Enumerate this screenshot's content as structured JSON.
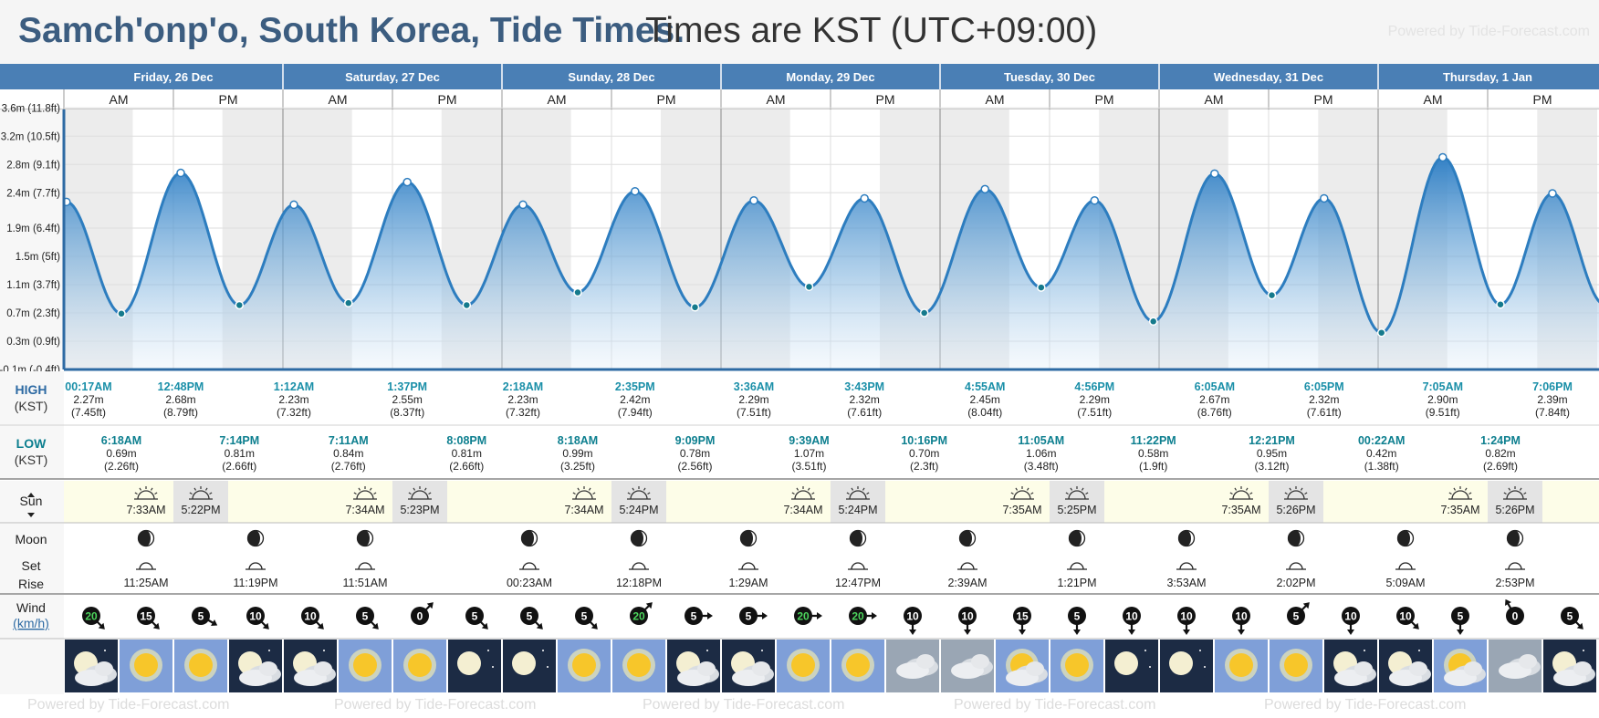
{
  "title": {
    "main": "Samch'onp'o, South Korea, Tide Times.",
    "sub": "Times are KST (UTC+09:00)",
    "powered": "Powered by Tide-Forecast.com"
  },
  "colors": {
    "header": "#4a7fb5",
    "accent_text": "#1a8fa8",
    "low_text": "#0d7f8f",
    "night_shade": "#ececec",
    "sun_row": "#fdfde8",
    "wave": "#2d7dbf"
  },
  "days": [
    {
      "label": "Friday, 26 Dec"
    },
    {
      "label": "Saturday, 27 Dec"
    },
    {
      "label": "Sunday, 28 Dec"
    },
    {
      "label": "Monday, 29 Dec"
    },
    {
      "label": "Tuesday, 30 Dec"
    },
    {
      "label": "Wednesday, 31 Dec"
    },
    {
      "label": "Thursday, 1 Jan"
    }
  ],
  "ampm": {
    "am": "AM",
    "pm": "PM"
  },
  "row_labels": {
    "high": "HIGH",
    "high_tz": "(KST)",
    "low": "LOW",
    "low_tz": "(KST)",
    "sun": "Sun",
    "moon": "Moon",
    "moon_set": "Set",
    "moon_rise": "Rise",
    "wind": "Wind",
    "wind_unit": "km/h"
  },
  "chart_data": {
    "type": "area",
    "title": "",
    "ylabel": "",
    "x_unit": "hours from Friday 26 Dec 00:00 KST",
    "y_ticks": [
      {
        "m": 3.6,
        "label": "3.6m (11.8ft)"
      },
      {
        "m": 3.2,
        "label": "3.2m (10.5ft)"
      },
      {
        "m": 2.8,
        "label": "2.8m (9.1ft)"
      },
      {
        "m": 2.4,
        "label": "2.4m (7.7ft)"
      },
      {
        "m": 1.9,
        "label": "1.9m (6.4ft)"
      },
      {
        "m": 1.5,
        "label": "1.5m (5ft)"
      },
      {
        "m": 1.1,
        "label": "1.1m (3.7ft)"
      },
      {
        "m": 0.7,
        "label": "0.7m (2.3ft)"
      },
      {
        "m": 0.3,
        "label": "0.3m (0.9ft)"
      },
      {
        "m": -0.1,
        "label": "-0.1m (-0.4ft)"
      }
    ],
    "ylim": [
      -0.1,
      3.7
    ],
    "tides": [
      {
        "type": "high",
        "day": 0,
        "time": "00:17AM",
        "m": "2.27m",
        "ft": "(7.45ft)",
        "h": 0.28,
        "v": 2.27
      },
      {
        "type": "low",
        "day": 0,
        "time": "6:18AM",
        "m": "0.69m",
        "ft": "(2.26ft)",
        "h": 6.3,
        "v": 0.69
      },
      {
        "type": "high",
        "day": 0,
        "time": "12:48PM",
        "m": "2.68m",
        "ft": "(8.79ft)",
        "h": 12.8,
        "v": 2.68
      },
      {
        "type": "low",
        "day": 0,
        "time": "7:14PM",
        "m": "0.81m",
        "ft": "(2.66ft)",
        "h": 19.23,
        "v": 0.81
      },
      {
        "type": "high",
        "day": 1,
        "time": "1:12AM",
        "m": "2.23m",
        "ft": "(7.32ft)",
        "h": 25.2,
        "v": 2.23
      },
      {
        "type": "low",
        "day": 1,
        "time": "7:11AM",
        "m": "0.84m",
        "ft": "(2.76ft)",
        "h": 31.18,
        "v": 0.84
      },
      {
        "type": "high",
        "day": 1,
        "time": "1:37PM",
        "m": "2.55m",
        "ft": "(8.37ft)",
        "h": 37.62,
        "v": 2.55
      },
      {
        "type": "low",
        "day": 1,
        "time": "8:08PM",
        "m": "0.81m",
        "ft": "(2.66ft)",
        "h": 44.13,
        "v": 0.81
      },
      {
        "type": "high",
        "day": 2,
        "time": "2:18AM",
        "m": "2.23m",
        "ft": "(7.32ft)",
        "h": 50.3,
        "v": 2.23
      },
      {
        "type": "low",
        "day": 2,
        "time": "8:18AM",
        "m": "0.99m",
        "ft": "(3.25ft)",
        "h": 56.3,
        "v": 0.99
      },
      {
        "type": "high",
        "day": 2,
        "time": "2:35PM",
        "m": "2.42m",
        "ft": "(7.94ft)",
        "h": 62.58,
        "v": 2.42
      },
      {
        "type": "low",
        "day": 2,
        "time": "9:09PM",
        "m": "0.78m",
        "ft": "(2.56ft)",
        "h": 69.15,
        "v": 0.78
      },
      {
        "type": "high",
        "day": 3,
        "time": "3:36AM",
        "m": "2.29m",
        "ft": "(7.51ft)",
        "h": 75.6,
        "v": 2.29
      },
      {
        "type": "low",
        "day": 3,
        "time": "9:39AM",
        "m": "1.07m",
        "ft": "(3.51ft)",
        "h": 81.65,
        "v": 1.07
      },
      {
        "type": "high",
        "day": 3,
        "time": "3:43PM",
        "m": "2.32m",
        "ft": "(7.61ft)",
        "h": 87.72,
        "v": 2.32
      },
      {
        "type": "low",
        "day": 3,
        "time": "10:16PM",
        "m": "0.70m",
        "ft": "(2.3ft)",
        "h": 94.27,
        "v": 0.7
      },
      {
        "type": "high",
        "day": 4,
        "time": "4:55AM",
        "m": "2.45m",
        "ft": "(8.04ft)",
        "h": 100.92,
        "v": 2.45
      },
      {
        "type": "low",
        "day": 4,
        "time": "11:05AM",
        "m": "1.06m",
        "ft": "(3.48ft)",
        "h": 107.08,
        "v": 1.06
      },
      {
        "type": "high",
        "day": 4,
        "time": "4:56PM",
        "m": "2.29m",
        "ft": "(7.51ft)",
        "h": 112.93,
        "v": 2.29
      },
      {
        "type": "low",
        "day": 4,
        "time": "11:22PM",
        "m": "0.58m",
        "ft": "(1.9ft)",
        "h": 119.37,
        "v": 0.58
      },
      {
        "type": "high",
        "day": 5,
        "time": "6:05AM",
        "m": "2.67m",
        "ft": "(8.76ft)",
        "h": 126.08,
        "v": 2.67
      },
      {
        "type": "low",
        "day": 5,
        "time": "12:21PM",
        "m": "0.95m",
        "ft": "(3.12ft)",
        "h": 132.35,
        "v": 0.95
      },
      {
        "type": "high",
        "day": 5,
        "time": "6:05PM",
        "m": "2.32m",
        "ft": "(7.61ft)",
        "h": 138.08,
        "v": 2.32
      },
      {
        "type": "low",
        "day": 6,
        "time": "00:22AM",
        "m": "0.42m",
        "ft": "(1.38ft)",
        "h": 144.37,
        "v": 0.42
      },
      {
        "type": "high",
        "day": 6,
        "time": "7:05AM",
        "m": "2.90m",
        "ft": "(9.51ft)",
        "h": 151.08,
        "v": 2.9
      },
      {
        "type": "low",
        "day": 6,
        "time": "1:24PM",
        "m": "0.82m",
        "ft": "(2.69ft)",
        "h": 157.4,
        "v": 0.82
      },
      {
        "type": "high",
        "day": 6,
        "time": "7:06PM",
        "m": "2.39m",
        "ft": "(7.84ft)",
        "h": 163.1,
        "v": 2.39
      }
    ]
  },
  "sun": [
    {
      "rise": "7:33AM",
      "set": "5:22PM",
      "rise_h": 7.55,
      "set_h": 17.37
    },
    {
      "rise": "7:34AM",
      "set": "5:23PM",
      "rise_h": 7.57,
      "set_h": 17.38
    },
    {
      "rise": "7:34AM",
      "set": "5:24PM",
      "rise_h": 7.57,
      "set_h": 17.4
    },
    {
      "rise": "7:34AM",
      "set": "5:24PM",
      "rise_h": 7.57,
      "set_h": 17.4
    },
    {
      "rise": "7:35AM",
      "set": "5:25PM",
      "rise_h": 7.58,
      "set_h": 17.42
    },
    {
      "rise": "7:35AM",
      "set": "5:26PM",
      "rise_h": 7.58,
      "set_h": 17.43
    },
    {
      "rise": "7:35AM",
      "set": "5:26PM",
      "rise_h": 7.58,
      "set_h": 17.43
    }
  ],
  "moon": [
    {
      "slot": 1,
      "time": "11:25AM",
      "kind": "rise"
    },
    {
      "slot": 3,
      "time": "11:19PM",
      "kind": "set"
    },
    {
      "slot": 5,
      "time": "11:51AM",
      "kind": "rise"
    },
    {
      "slot": 8,
      "time": "00:23AM",
      "kind": "set"
    },
    {
      "slot": 10,
      "time": "12:18PM",
      "kind": "rise"
    },
    {
      "slot": 12,
      "time": "1:29AM",
      "kind": "set"
    },
    {
      "slot": 14,
      "time": "12:47PM",
      "kind": "rise"
    },
    {
      "slot": 16,
      "time": "2:39AM",
      "kind": "set"
    },
    {
      "slot": 18,
      "time": "1:21PM",
      "kind": "rise"
    },
    {
      "slot": 20,
      "time": "3:53AM",
      "kind": "set"
    },
    {
      "slot": 22,
      "time": "2:02PM",
      "kind": "rise"
    },
    {
      "slot": 24,
      "time": "5:09AM",
      "kind": "set"
    },
    {
      "slot": 26,
      "time": "2:53PM",
      "kind": "rise"
    }
  ],
  "wind": [
    {
      "v": "20",
      "rot": 135,
      "green": true
    },
    {
      "v": "15",
      "rot": 135
    },
    {
      "v": "5",
      "rot": 120
    },
    {
      "v": "10",
      "rot": 135
    },
    {
      "v": "10",
      "rot": 135
    },
    {
      "v": "5",
      "rot": 135
    },
    {
      "v": "0",
      "rot": 45
    },
    {
      "v": "5",
      "rot": 135
    },
    {
      "v": "5",
      "rot": 135
    },
    {
      "v": "5",
      "rot": 135
    },
    {
      "v": "20",
      "rot": 45,
      "green": true
    },
    {
      "v": "5",
      "rot": 90
    },
    {
      "v": "5",
      "rot": 90
    },
    {
      "v": "20",
      "rot": 90,
      "green": true
    },
    {
      "v": "20",
      "rot": 90,
      "green": true
    },
    {
      "v": "10",
      "rot": 180
    },
    {
      "v": "10",
      "rot": 180
    },
    {
      "v": "15",
      "rot": 180
    },
    {
      "v": "5",
      "rot": 180
    },
    {
      "v": "10",
      "rot": 180
    },
    {
      "v": "10",
      "rot": 180
    },
    {
      "v": "10",
      "rot": 180
    },
    {
      "v": "5",
      "rot": 45
    },
    {
      "v": "10",
      "rot": 180
    },
    {
      "v": "10",
      "rot": 135
    },
    {
      "v": "5",
      "rot": 180
    },
    {
      "v": "0",
      "rot": -30
    },
    {
      "v": "5",
      "rot": 135
    }
  ],
  "weather": [
    "moon-cloud-icon",
    "sun-icon",
    "sun-icon",
    "moon-cloud-icon",
    "moon-cloud-icon",
    "sun-icon",
    "sun-icon",
    "moon-icon",
    "moon-icon",
    "sun-icon",
    "sun-icon",
    "moon-cloud-icon",
    "moon-cloud-icon",
    "sun-icon",
    "sun-icon",
    "cloud-icon",
    "cloud-icon",
    "sun-cloud-icon",
    "sun-icon",
    "moon-icon",
    "moon-icon",
    "sun-icon",
    "sun-icon",
    "moon-cloud-icon",
    "moon-cloud-icon",
    "sun-cloud-icon",
    "cloud-icon",
    "moon-cloud-icon"
  ]
}
